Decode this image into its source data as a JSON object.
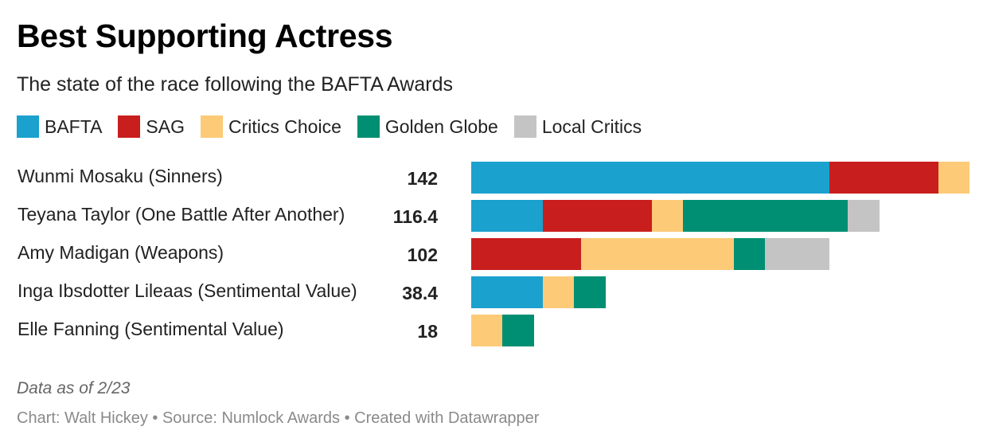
{
  "title": "Best Supporting Actress",
  "subtitle": "The state of the race following the BAFTA Awards",
  "note": "Data as of 2/23",
  "footer": "Chart: Walt Hickey • Source: Numlock Awards • Created with Datawrapper",
  "chart_data": {
    "type": "bar",
    "orientation": "horizontal",
    "stacked": true,
    "legend_placement": "top",
    "grid": false,
    "xlim": [
      0,
      142
    ],
    "categories": [
      "Wunmi Mosaku (Sinners)",
      "Teyana Taylor (One Battle After Another)",
      "Amy Madigan (Weapons)",
      "Inga Ibsdotter Lileaas (Sentimental Value)",
      "Elle Fanning (Sentimental Value)"
    ],
    "totals": [
      "142",
      "116.4",
      "102",
      "38.4",
      "18"
    ],
    "series": [
      {
        "name": "BAFTA",
        "color": "#1aa1ce",
        "values": [
          102,
          20.4,
          0,
          20.4,
          0
        ]
      },
      {
        "name": "SAG",
        "color": "#c91e1e",
        "values": [
          31.2,
          31.2,
          31.2,
          0,
          0
        ]
      },
      {
        "name": "Critics Choice",
        "color": "#fdca78",
        "values": [
          8.8,
          8.8,
          43.6,
          8.8,
          8.8
        ]
      },
      {
        "name": "Golden Globe",
        "color": "#008f72",
        "values": [
          0,
          47,
          9,
          9.2,
          9.2
        ]
      },
      {
        "name": "Local Critics",
        "color": "#c4c4c4",
        "values": [
          0,
          9,
          18.2,
          0,
          0
        ]
      }
    ]
  }
}
